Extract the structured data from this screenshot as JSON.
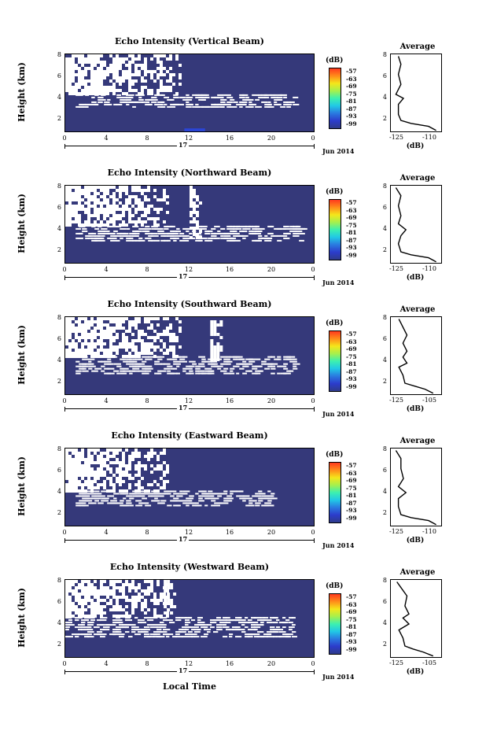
{
  "figure": {
    "x_axis_label": "Local Time",
    "day_label": "17",
    "month_label": "Jun 2014",
    "y_axis_label": "Height (km)",
    "y_ticks": [
      "8",
      "6",
      "4",
      "2"
    ],
    "x_ticks": [
      "0",
      "4",
      "8",
      "12",
      "16",
      "20",
      "0"
    ],
    "colorbar_unit": "(dB)",
    "colorbar_ticks": [
      "-57",
      "-63",
      "-69",
      "-75",
      "-81",
      "-87",
      "-93",
      "-99"
    ],
    "avg_title": "Average",
    "avg_unit": "(dB)",
    "avg_y_ticks": [
      "8",
      "6",
      "4",
      "2"
    ]
  },
  "panels": [
    {
      "title": "Echo Intensity (Vertical Beam)",
      "avg_x_ticks": [
        "-125",
        "-110"
      ]
    },
    {
      "title": "Echo Intensity (Northward Beam)",
      "avg_x_ticks": [
        "-125",
        "-110"
      ]
    },
    {
      "title": "Echo Intensity (Southward Beam)",
      "avg_x_ticks": [
        "-125",
        "-105"
      ]
    },
    {
      "title": "Echo Intensity (Eastward Beam)",
      "avg_x_ticks": [
        "-125",
        "-110"
      ]
    },
    {
      "title": "Echo Intensity (Westward Beam)",
      "avg_x_ticks": [
        "-125",
        "-105"
      ]
    }
  ],
  "chart_data": {
    "type": "heatmap",
    "description_units": {
      "x": "hours local time",
      "y": "km",
      "value": "dB"
    },
    "xlim": [
      0,
      24
    ],
    "ylim": [
      0.5,
      8.2
    ],
    "colorbar_range": [
      -99,
      -57
    ],
    "colors": {
      "background": "#35397a",
      "nodata": "#ffffff",
      "weak": "#2b45d6"
    },
    "echo_regions_by_beam": [
      {
        "beam": "Vertical",
        "regions": [
          {
            "x": [
              0,
              24
            ],
            "y": [
              0.5,
              2.8
            ],
            "level": "background"
          },
          {
            "x": [
              1,
              22
            ],
            "y": [
              2.8,
              4.2
            ],
            "level": "nodata-speckle"
          },
          {
            "x": [
              0,
              11
            ],
            "y": [
              4.2,
              8.2
            ],
            "level": "nodata"
          },
          {
            "x": [
              11,
              24
            ],
            "y": [
              5.5,
              8.2
            ],
            "level": "background"
          },
          {
            "x": [
              11.5,
              13.5
            ],
            "y": [
              0.5,
              0.8
            ],
            "level": "weak"
          }
        ]
      },
      {
        "beam": "Northward",
        "regions": [
          {
            "x": [
              0,
              24
            ],
            "y": [
              0.5,
              2.6
            ],
            "level": "background"
          },
          {
            "x": [
              1,
              23
            ],
            "y": [
              2.6,
              4.2
            ],
            "level": "nodata-speckle"
          },
          {
            "x": [
              0,
              10
            ],
            "y": [
              4.2,
              8.2
            ],
            "level": "nodata"
          },
          {
            "x": [
              12,
              13
            ],
            "y": [
              3.0,
              8.2
            ],
            "level": "nodata"
          }
        ]
      },
      {
        "beam": "Southward",
        "regions": [
          {
            "x": [
              0,
              24
            ],
            "y": [
              0.5,
              2.5
            ],
            "level": "background"
          },
          {
            "x": [
              1,
              22
            ],
            "y": [
              2.5,
              4.3
            ],
            "level": "nodata-speckle"
          },
          {
            "x": [
              0,
              11
            ],
            "y": [
              4.3,
              8.2
            ],
            "level": "nodata"
          },
          {
            "x": [
              14,
              15
            ],
            "y": [
              4.0,
              8.2
            ],
            "level": "nodata"
          }
        ]
      },
      {
        "beam": "Eastward",
        "regions": [
          {
            "x": [
              0,
              24
            ],
            "y": [
              0.5,
              2.5
            ],
            "level": "background"
          },
          {
            "x": [
              1,
              20
            ],
            "y": [
              2.5,
              4.0
            ],
            "level": "nodata-speckle"
          },
          {
            "x": [
              0,
              10
            ],
            "y": [
              4.0,
              8.2
            ],
            "level": "nodata"
          }
        ]
      },
      {
        "beam": "Westward",
        "regions": [
          {
            "x": [
              0,
              24
            ],
            "y": [
              0.5,
              2.5
            ],
            "level": "background"
          },
          {
            "x": [
              0,
              22
            ],
            "y": [
              2.5,
              4.5
            ],
            "level": "nodata-speckle"
          },
          {
            "x": [
              0,
              10
            ],
            "y": [
              4.5,
              8.2
            ],
            "level": "nodata"
          },
          {
            "x": [
              9.5,
              10.5
            ],
            "y": [
              5.0,
              8.2
            ],
            "level": "nodata"
          }
        ]
      }
    ],
    "average_profiles": [
      {
        "beam": "Vertical",
        "xlim": [
          -125,
          -105
        ],
        "x": [
          -107,
          -110,
          -117,
          -121,
          -122,
          -122,
          -120,
          -123,
          -121,
          -122,
          -121,
          -122
        ],
        "y": [
          0.6,
          1.0,
          1.3,
          1.6,
          2.2,
          3.2,
          3.8,
          4.2,
          5.2,
          6.2,
          7.2,
          8.0
        ]
      },
      {
        "beam": "Northward",
        "xlim": [
          -125,
          -105
        ],
        "x": [
          -107,
          -110,
          -117,
          -121,
          -122,
          -121,
          -119,
          -122,
          -121,
          -122,
          -121,
          -123
        ],
        "y": [
          0.6,
          1.0,
          1.3,
          1.6,
          2.4,
          3.2,
          3.8,
          4.4,
          5.2,
          6.2,
          7.2,
          8.0
        ]
      },
      {
        "beam": "Southward",
        "xlim": [
          -125,
          -100
        ],
        "x": [
          -104,
          -108,
          -113,
          -118,
          -119,
          -121,
          -117,
          -119,
          -117,
          -119,
          -117,
          -121
        ],
        "y": [
          0.6,
          1.0,
          1.3,
          1.6,
          2.4,
          3.2,
          3.6,
          4.2,
          4.8,
          5.6,
          6.4,
          8.0
        ]
      },
      {
        "beam": "Eastward",
        "xlim": [
          -125,
          -105
        ],
        "x": [
          -107,
          -110,
          -117,
          -121,
          -122,
          -122,
          -119,
          -122,
          -120,
          -121,
          -121,
          -123
        ],
        "y": [
          0.6,
          1.0,
          1.3,
          1.6,
          2.4,
          3.2,
          3.8,
          4.4,
          5.2,
          6.2,
          7.2,
          8.0
        ]
      },
      {
        "beam": "Westward",
        "xlim": [
          -125,
          -100
        ],
        "x": [
          -104,
          -109,
          -114,
          -118,
          -119,
          -121,
          -116,
          -119,
          -116,
          -118,
          -117,
          -122
        ],
        "y": [
          0.6,
          1.0,
          1.3,
          1.6,
          2.4,
          3.2,
          3.8,
          4.4,
          4.8,
          5.6,
          6.6,
          8.0
        ]
      }
    ]
  }
}
